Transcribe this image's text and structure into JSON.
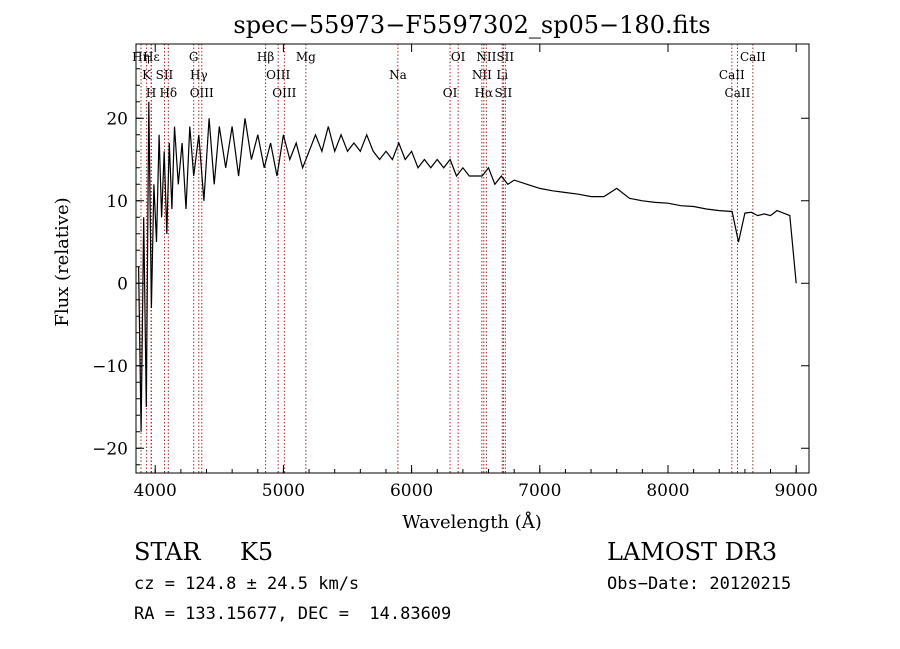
{
  "chart_data": {
    "type": "line",
    "title": "spec−55973−F5597302_sp05−180.fits",
    "xlabel": "Wavelength (Å)",
    "ylabel": "Flux (relative)",
    "xlim": [
      3850,
      9100
    ],
    "ylim": [
      -23,
      29
    ],
    "x_ticks": [
      4000,
      5000,
      6000,
      7000,
      8000,
      9000
    ],
    "x_tick_labels": [
      "4000",
      "5000",
      "6000",
      "7000",
      "8000",
      "9000"
    ],
    "y_ticks": [
      -20,
      -10,
      0,
      10,
      20
    ],
    "y_tick_labels": [
      "−20",
      "−10",
      "0",
      "10",
      "20"
    ],
    "series": [
      {
        "name": "flux",
        "x": [
          3870,
          3890,
          3910,
          3930,
          3950,
          3970,
          3990,
          4010,
          4030,
          4050,
          4070,
          4090,
          4110,
          4130,
          4150,
          4180,
          4210,
          4240,
          4270,
          4300,
          4340,
          4380,
          4420,
          4460,
          4500,
          4550,
          4600,
          4650,
          4700,
          4750,
          4800,
          4850,
          4900,
          4950,
          5000,
          5050,
          5100,
          5150,
          5200,
          5250,
          5300,
          5350,
          5400,
          5450,
          5500,
          5550,
          5600,
          5650,
          5700,
          5750,
          5800,
          5850,
          5900,
          5950,
          6000,
          6050,
          6100,
          6150,
          6200,
          6250,
          6300,
          6350,
          6400,
          6450,
          6500,
          6550,
          6600,
          6650,
          6700,
          6750,
          6800,
          6900,
          7000,
          7100,
          7200,
          7300,
          7400,
          7500,
          7600,
          7700,
          7800,
          7900,
          8000,
          8100,
          8200,
          8300,
          8400,
          8500,
          8550,
          8600,
          8650,
          8700,
          8750,
          8800,
          8850,
          8900,
          8950,
          9000
        ],
        "y": [
          2,
          -18,
          8,
          -15,
          22,
          -3,
          12,
          5,
          18,
          8,
          16,
          6,
          17,
          9,
          19,
          12,
          17,
          9,
          19,
          13,
          18,
          10,
          20,
          12,
          19,
          14,
          19,
          13,
          20,
          15,
          18,
          14,
          17,
          13,
          18,
          15,
          17,
          14,
          16,
          18,
          16,
          19,
          16,
          18,
          16,
          17,
          16,
          18,
          16,
          15,
          16,
          15,
          17,
          15,
          16,
          14,
          15,
          14,
          15,
          14,
          15,
          13,
          14,
          13,
          13,
          13,
          14,
          12,
          13,
          12,
          12.5,
          12,
          11.5,
          11.2,
          11,
          10.8,
          10.5,
          10.5,
          11.5,
          10.3,
          10,
          9.8,
          9.7,
          9.4,
          9.3,
          9,
          8.8,
          8.7,
          5,
          8.5,
          8.6,
          8.2,
          8.4,
          8.2,
          8.8,
          8.5,
          8.2,
          0
        ]
      }
    ],
    "lines": [
      {
        "x": 3889,
        "label": "Hη"
      },
      {
        "x": 3933,
        "label": "K"
      },
      {
        "x": 3968,
        "label": "H"
      },
      {
        "x": 3970,
        "label": "Hε"
      },
      {
        "x": 4072,
        "label": "SII"
      },
      {
        "x": 4102,
        "label": "Hδ"
      },
      {
        "x": 4300,
        "label": "G"
      },
      {
        "x": 4340,
        "label": "Hγ"
      },
      {
        "x": 4363,
        "label": "OIII"
      },
      {
        "x": 4861,
        "label": "Hβ"
      },
      {
        "x": 4959,
        "label": "OIII"
      },
      {
        "x": 5007,
        "label": "OIII"
      },
      {
        "x": 5175,
        "label": "Mg"
      },
      {
        "x": 5893,
        "label": "Na"
      },
      {
        "x": 6300,
        "label": "OI"
      },
      {
        "x": 6363,
        "label": "OI"
      },
      {
        "x": 6548,
        "label": "NII"
      },
      {
        "x": 6563,
        "label": "Hα"
      },
      {
        "x": 6583,
        "label": "NII"
      },
      {
        "x": 6707,
        "label": "Li"
      },
      {
        "x": 6716,
        "label": "SII"
      },
      {
        "x": 6731,
        "label": "SII"
      },
      {
        "x": 8498,
        "label": "CaII"
      },
      {
        "x": 8542,
        "label": "CaII"
      },
      {
        "x": 8662,
        "label": "CaII"
      }
    ],
    "line_color": "#a52a2a"
  },
  "info": {
    "class": "STAR",
    "subclass": "K5",
    "survey": "LAMOST DR3",
    "cz": "cz = 124.8 ± 24.5 km/s",
    "obs_date": "Obs−Date: 20120215",
    "coords": "RA = 133.15677, DEC =  14.83609"
  }
}
